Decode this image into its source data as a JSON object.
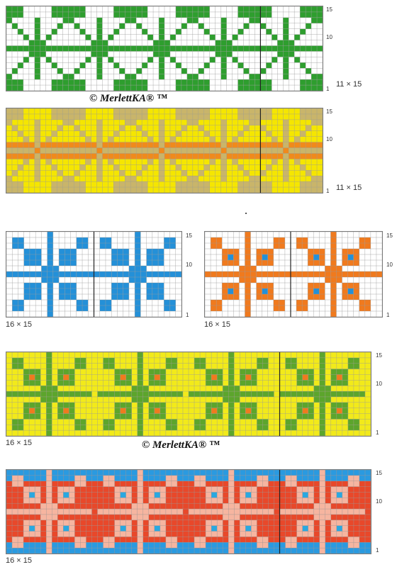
{
  "copyright": "© MerlettKA® ™",
  "row_labels": {
    "top": "15",
    "mid": "10",
    "bottom": "1"
  },
  "charts": [
    {
      "name": "green-white-border",
      "size_label": "11 × 15",
      "pattern": "star",
      "colors": {
        "bg": "#ffffff",
        "main": "#2e9e2e",
        "accent": "#2e9e2e",
        "band": "#ffffff"
      }
    },
    {
      "name": "yellow-orange-border",
      "size_label": "11 × 15",
      "pattern": "star",
      "colors": {
        "bg": "#f5e600",
        "main": "#c9b56a",
        "accent": "#f08a1c",
        "band": "#f08a1c"
      }
    },
    {
      "name": "blue-cross-motif",
      "size_label": "16 × 15",
      "pattern": "cross",
      "colors": {
        "bg": "#ffffff",
        "main": "#2490d8",
        "accent": "#2490d8",
        "band": "#ffffff"
      }
    },
    {
      "name": "orange-cross-motif",
      "size_label": "16 × 15",
      "pattern": "cross",
      "colors": {
        "bg": "#ffffff",
        "main": "#f07a1e",
        "accent": "#2490d8",
        "band": "#ffffff"
      }
    },
    {
      "name": "yellow-green-border",
      "size_label": "16 × 15",
      "pattern": "cross",
      "colors": {
        "bg": "#f2ea1a",
        "main": "#5ca52c",
        "accent": "#f07a1e",
        "band": "#f2ea1a"
      }
    },
    {
      "name": "red-pink-blue-border",
      "size_label": "16 × 15",
      "pattern": "cross",
      "colors": {
        "bg": "#e8482a",
        "main": "#f6b5a0",
        "accent": "#2aa8e0",
        "band": "#2a9ae0"
      }
    }
  ]
}
